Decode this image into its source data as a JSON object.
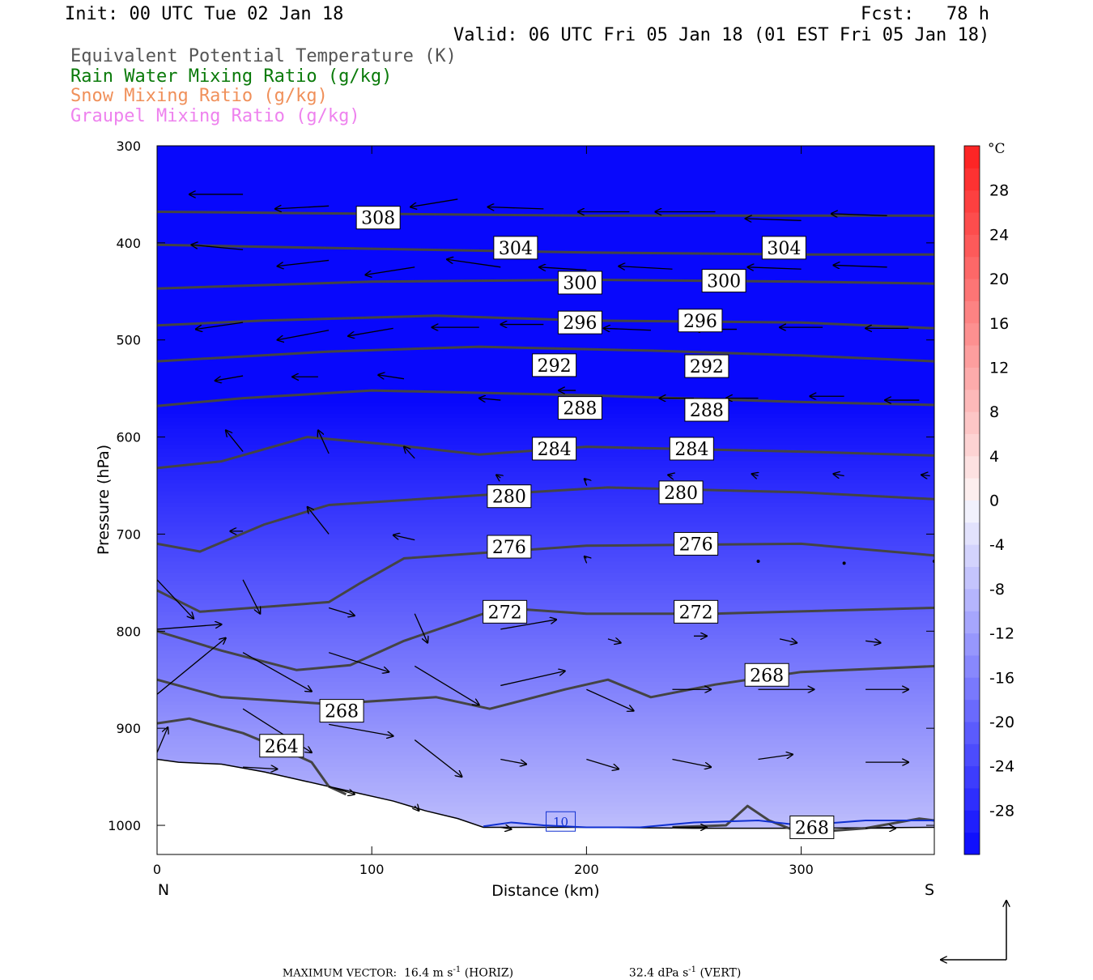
{
  "header": {
    "init": "Init: 00 UTC Tue 02 Jan 18",
    "fcst": "Fcst:   78 h",
    "valid": "Valid: 06 UTC Fri 05 Jan 18 (01 EST Fri 05 Jan 18)",
    "legend": [
      {
        "text": "Equivalent Potential Temperature (K)",
        "color": "#555555"
      },
      {
        "text": "Rain Water Mixing Ratio (g/kg)",
        "color": "#0a7a0a"
      },
      {
        "text": "Snow Mixing Ratio (g/kg)",
        "color": "#f0905a"
      },
      {
        "text": "Graupel Mixing Ratio (g/kg)",
        "color": "#ee82ee"
      }
    ]
  },
  "footer": {
    "max_vector_label": "MAXIMUM VECTOR:",
    "horiz": "16.4 m s",
    "horiz_exp": "-1",
    "horiz_tag": "(HORIZ)",
    "vert": "32.4 dPa s",
    "vert_exp": "-1",
    "vert_tag": "(VERT)"
  },
  "chart_data": {
    "type": "cross-section",
    "xlabel": "Distance (km)",
    "ylabel": "Pressure (hPa)",
    "x_ticks": [
      0,
      100,
      200,
      300
    ],
    "y_ticks": [
      300,
      400,
      500,
      600,
      700,
      800,
      900,
      1000
    ],
    "xlim": [
      0,
      362
    ],
    "ylim": [
      300,
      1030
    ],
    "x_end_labels": {
      "left": "N",
      "right": "S"
    },
    "colorbar": {
      "unit": "°C",
      "ticks": [
        28,
        24,
        20,
        16,
        12,
        8,
        4,
        0,
        -4,
        -8,
        -12,
        -16,
        -20,
        -24,
        -28
      ],
      "range": [
        -32,
        32
      ],
      "step": 2
    },
    "theta_e_contours": [
      {
        "value": 308,
        "points": [
          [
            0,
            368
          ],
          [
            100,
            370
          ],
          [
            200,
            372
          ],
          [
            300,
            372
          ],
          [
            362,
            372
          ]
        ]
      },
      {
        "value": 304,
        "points": [
          [
            0,
            402
          ],
          [
            100,
            406
          ],
          [
            200,
            410
          ],
          [
            300,
            412
          ],
          [
            362,
            412
          ]
        ]
      },
      {
        "value": 300,
        "points": [
          [
            0,
            447
          ],
          [
            100,
            440
          ],
          [
            200,
            438
          ],
          [
            300,
            440
          ],
          [
            362,
            442
          ]
        ]
      },
      {
        "value": 296,
        "points": [
          [
            0,
            485
          ],
          [
            50,
            480
          ],
          [
            130,
            475
          ],
          [
            200,
            480
          ],
          [
            300,
            482
          ],
          [
            362,
            488
          ]
        ]
      },
      {
        "value": 292,
        "points": [
          [
            0,
            522
          ],
          [
            80,
            512
          ],
          [
            150,
            507
          ],
          [
            230,
            511
          ],
          [
            300,
            516
          ],
          [
            362,
            522
          ]
        ]
      },
      {
        "value": 288,
        "points": [
          [
            0,
            568
          ],
          [
            40,
            560
          ],
          [
            100,
            552
          ],
          [
            200,
            557
          ],
          [
            300,
            564
          ],
          [
            362,
            567
          ]
        ]
      },
      {
        "value": 284,
        "points": [
          [
            0,
            632
          ],
          [
            30,
            625
          ],
          [
            70,
            600
          ],
          [
            110,
            608
          ],
          [
            150,
            618
          ],
          [
            200,
            610
          ],
          [
            300,
            615
          ],
          [
            362,
            619
          ]
        ]
      },
      {
        "value": 280,
        "points": [
          [
            0,
            710
          ],
          [
            20,
            718
          ],
          [
            50,
            690
          ],
          [
            80,
            670
          ],
          [
            150,
            660
          ],
          [
            210,
            652
          ],
          [
            300,
            657
          ],
          [
            362,
            664
          ]
        ]
      },
      {
        "value": 276,
        "points": [
          [
            0,
            758
          ],
          [
            20,
            780
          ],
          [
            80,
            770
          ],
          [
            95,
            750
          ],
          [
            115,
            725
          ],
          [
            200,
            712
          ],
          [
            300,
            710
          ],
          [
            362,
            722
          ]
        ]
      },
      {
        "value": 272,
        "points": [
          [
            0,
            800
          ],
          [
            30,
            820
          ],
          [
            65,
            840
          ],
          [
            90,
            835
          ],
          [
            115,
            810
          ],
          [
            160,
            776
          ],
          [
            200,
            782
          ],
          [
            260,
            782
          ],
          [
            362,
            776
          ]
        ]
      },
      {
        "value": 268,
        "points": [
          [
            0,
            850
          ],
          [
            30,
            868
          ],
          [
            80,
            875
          ],
          [
            130,
            868
          ],
          [
            155,
            880
          ],
          [
            190,
            860
          ],
          [
            210,
            850
          ],
          [
            230,
            868
          ],
          [
            260,
            855
          ],
          [
            300,
            842
          ],
          [
            362,
            836
          ]
        ]
      },
      {
        "value": 264,
        "points": [
          [
            0,
            895
          ],
          [
            15,
            890
          ],
          [
            40,
            905
          ],
          [
            62,
            925
          ],
          [
            72,
            935
          ],
          [
            80,
            960
          ],
          [
            88,
            968
          ]
        ]
      },
      {
        "value": 268,
        "points": [
          [
            240,
            1002
          ],
          [
            265,
            1000
          ],
          [
            275,
            980
          ],
          [
            285,
            995
          ],
          [
            300,
            1008
          ],
          [
            330,
            1003
          ],
          [
            355,
            993
          ],
          [
            362,
            995
          ]
        ]
      }
    ],
    "contour_labels": [
      {
        "text": "308",
        "x": 103,
        "y": 374
      },
      {
        "text": "304",
        "x": 167,
        "y": 405
      },
      {
        "text": "304",
        "x": 292,
        "y": 405
      },
      {
        "text": "300",
        "x": 197,
        "y": 441
      },
      {
        "text": "300",
        "x": 264,
        "y": 439
      },
      {
        "text": "296",
        "x": 197,
        "y": 482
      },
      {
        "text": "296",
        "x": 253,
        "y": 480
      },
      {
        "text": "292",
        "x": 185,
        "y": 526
      },
      {
        "text": "292",
        "x": 256,
        "y": 527
      },
      {
        "text": "288",
        "x": 197,
        "y": 570
      },
      {
        "text": "288",
        "x": 256,
        "y": 572
      },
      {
        "text": "284",
        "x": 185,
        "y": 612
      },
      {
        "text": "284",
        "x": 249,
        "y": 612
      },
      {
        "text": "280",
        "x": 164,
        "y": 661
      },
      {
        "text": "280",
        "x": 244,
        "y": 657
      },
      {
        "text": "276",
        "x": 164,
        "y": 713
      },
      {
        "text": "276",
        "x": 251,
        "y": 710
      },
      {
        "text": "272",
        "x": 162,
        "y": 780
      },
      {
        "text": "272",
        "x": 251,
        "y": 780
      },
      {
        "text": "268",
        "x": 86,
        "y": 882
      },
      {
        "text": "268",
        "x": 284,
        "y": 845
      },
      {
        "text": "264",
        "x": 58,
        "y": 918
      },
      {
        "text": "268",
        "x": 305,
        "y": 1002
      }
    ],
    "rain_contour": {
      "value": "10",
      "label_x": 188,
      "label_y": 996
    },
    "wind_vectors": [
      [
        40,
        350,
        -25,
        0
      ],
      [
        80,
        362,
        -25,
        3
      ],
      [
        140,
        355,
        -22,
        8
      ],
      [
        180,
        365,
        -26,
        -2
      ],
      [
        220,
        368,
        -24,
        0
      ],
      [
        260,
        368,
        -28,
        0
      ],
      [
        300,
        377,
        -26,
        -2
      ],
      [
        340,
        372,
        -26,
        -2
      ],
      [
        40,
        407,
        -24,
        -5
      ],
      [
        80,
        418,
        -24,
        6
      ],
      [
        120,
        425,
        -23,
        8
      ],
      [
        160,
        425,
        -25,
        -8
      ],
      [
        200,
        428,
        -22,
        -3
      ],
      [
        240,
        427,
        -25,
        -3
      ],
      [
        300,
        427,
        -25,
        -2
      ],
      [
        340,
        425,
        -25,
        -2
      ],
      [
        40,
        482,
        -22,
        7
      ],
      [
        80,
        490,
        -24,
        10
      ],
      [
        110,
        488,
        -21,
        8
      ],
      [
        150,
        487,
        -22,
        0
      ],
      [
        180,
        484,
        -20,
        0
      ],
      [
        230,
        490,
        -22,
        -2
      ],
      [
        270,
        489,
        -20,
        0
      ],
      [
        310,
        487,
        -20,
        0
      ],
      [
        350,
        488,
        -20,
        0
      ],
      [
        40,
        537,
        -13,
        5
      ],
      [
        75,
        538,
        -12,
        0
      ],
      [
        115,
        540,
        -12,
        -4
      ],
      [
        160,
        562,
        -10,
        -2
      ],
      [
        195,
        552,
        -8,
        0
      ],
      [
        250,
        560,
        -16,
        0
      ],
      [
        280,
        560,
        -15,
        0
      ],
      [
        320,
        558,
        -16,
        0
      ],
      [
        355,
        562,
        -16,
        0
      ],
      [
        40,
        615,
        -8,
        -22
      ],
      [
        80,
        617,
        -5,
        -24
      ],
      [
        120,
        622,
        -5,
        -12
      ],
      [
        160,
        642,
        -2,
        -3
      ],
      [
        200,
        645,
        -1,
        -2
      ],
      [
        240,
        640,
        -2,
        -1
      ],
      [
        280,
        640,
        -3,
        -2
      ],
      [
        320,
        640,
        -5,
        -2
      ],
      [
        360,
        640,
        -4,
        -1
      ],
      [
        40,
        697,
        -6,
        0
      ],
      [
        80,
        700,
        -10,
        -28
      ],
      [
        120,
        706,
        -10,
        -5
      ],
      [
        170,
        707,
        -8,
        -2
      ],
      [
        200,
        725,
        -1,
        -2
      ],
      [
        280,
        728,
        0,
        0
      ],
      [
        320,
        730,
        0,
        0
      ],
      [
        362,
        728,
        0,
        0
      ],
      [
        0,
        747,
        17,
        40
      ],
      [
        40,
        747,
        8,
        35
      ],
      [
        80,
        776,
        12,
        8
      ],
      [
        120,
        782,
        6,
        30
      ],
      [
        160,
        798,
        26,
        -10
      ],
      [
        210,
        808,
        6,
        4
      ],
      [
        250,
        805,
        6,
        0
      ],
      [
        290,
        808,
        8,
        4
      ],
      [
        330,
        810,
        7,
        2
      ],
      [
        0,
        798,
        30,
        -5
      ],
      [
        0,
        865,
        32,
        -58
      ],
      [
        40,
        822,
        32,
        40
      ],
      [
        80,
        822,
        28,
        20
      ],
      [
        120,
        836,
        30,
        40
      ],
      [
        160,
        856,
        30,
        -15
      ],
      [
        200,
        860,
        22,
        22
      ],
      [
        240,
        860,
        18,
        0
      ],
      [
        280,
        860,
        26,
        0
      ],
      [
        330,
        860,
        20,
        0
      ],
      [
        0,
        925,
        5,
        -26
      ],
      [
        40,
        880,
        32,
        45
      ],
      [
        80,
        896,
        30,
        12
      ],
      [
        120,
        912,
        22,
        38
      ],
      [
        160,
        932,
        12,
        5
      ],
      [
        200,
        932,
        15,
        10
      ],
      [
        240,
        932,
        18,
        8
      ],
      [
        280,
        932,
        16,
        -5
      ],
      [
        330,
        935,
        20,
        0
      ],
      [
        40,
        940,
        16,
        2
      ],
      [
        80,
        960,
        12,
        8
      ],
      [
        120,
        980,
        2,
        5
      ],
      [
        160,
        1002,
        5,
        2
      ],
      [
        240,
        1002,
        16,
        0
      ],
      [
        300,
        1003,
        14,
        0
      ],
      [
        330,
        1003,
        14,
        0
      ]
    ]
  }
}
